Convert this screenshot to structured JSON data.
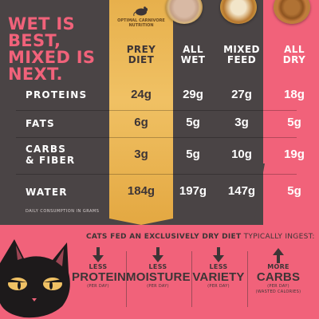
{
  "headline": [
    "WET IS",
    "BEST,",
    "MIXED IS",
    "NEXT."
  ],
  "badge": "OPTIMAL CARNIVORE NUTRITION",
  "columns": [
    {
      "label_1": "PREY",
      "label_2": "DIET"
    },
    {
      "label_1": "ALL",
      "label_2": "WET"
    },
    {
      "label_1": "MIXED",
      "label_2": "FEED"
    },
    {
      "label_1": "ALL",
      "label_2": "DRY"
    }
  ],
  "rows": [
    {
      "label_1": "PROTEINS",
      "label_2": "",
      "values": [
        "24g",
        "29g",
        "27g",
        "18g"
      ]
    },
    {
      "label_1": "FATS",
      "label_2": "",
      "values": [
        "6g",
        "5g",
        "3g",
        "5g"
      ]
    },
    {
      "label_1": "CARBS",
      "label_2": "& FIBER",
      "values": [
        "3g",
        "5g",
        "10g",
        "19g"
      ]
    },
    {
      "label_1": "WATER",
      "label_2": "",
      "values": [
        "184g",
        "197g",
        "147g",
        "5g"
      ]
    }
  ],
  "footnote": "DAILY CONSUMPTION IN GRAMS",
  "ingest": {
    "bold": "CATS FED AN EXCLUSIVELY DRY DIET",
    "light": " TYPICALLY INGEST:"
  },
  "effects": [
    {
      "direction": "down",
      "small": "LESS",
      "big": "PROTEIN",
      "per": "(PER DAY)",
      "extra": ""
    },
    {
      "direction": "down",
      "small": "LESS",
      "big": "MOISTURE",
      "per": "(PER DAY)",
      "extra": ""
    },
    {
      "direction": "down",
      "small": "LESS",
      "big": "VARIETY",
      "per": "(PER DAY)",
      "extra": ""
    },
    {
      "direction": "up",
      "small": "MORE",
      "big": "CARBS",
      "per": "(PER DAY)",
      "extra": "(WASTED CALORIES)"
    }
  ],
  "colors": {
    "background_pink": "#f1627a",
    "panel_dark": "#4a4445",
    "prey_gold": "#f0c164",
    "text_dark": "#3d3536"
  }
}
